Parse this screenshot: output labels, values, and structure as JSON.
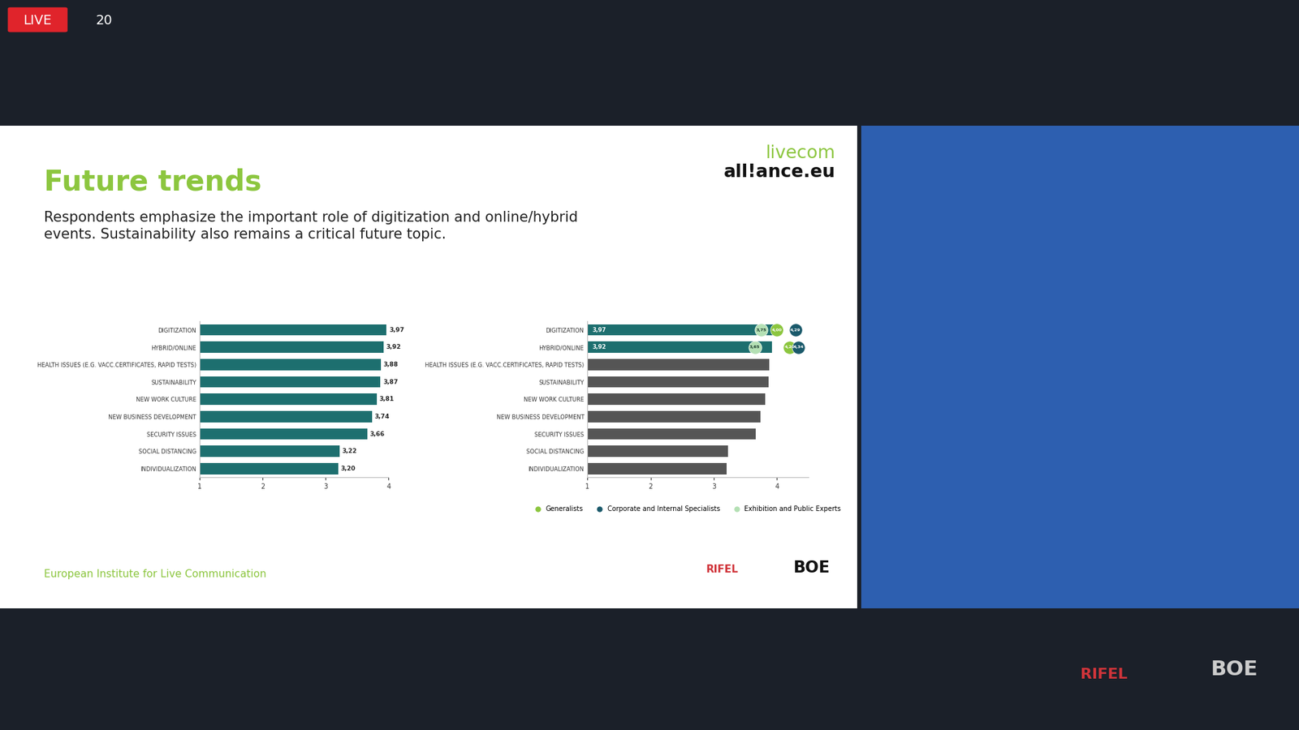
{
  "screen": {
    "live_badge": "LIVE",
    "viewers": "20",
    "footer_logos": [
      "RIFEL",
      "BOE"
    ]
  },
  "slide": {
    "title": "Future trends",
    "subtitle": "Respondents emphasize the important role of digitization and online/hybrid\nevents. Sustainability also remains a critical future topic.",
    "brand_top": "livecom",
    "brand_bottom": "all!ance.eu",
    "footer": "European Institute for Live Communication",
    "logos": [
      "RIFEL",
      "BOE"
    ]
  },
  "chart_data": [
    {
      "type": "bar",
      "orientation": "horizontal",
      "categories": [
        "DIGITIZATION",
        "HYBRID/ONLINE",
        "HEALTH ISSUES (E.G. VACC.CERTIFICATES, RAPID TESTS)",
        "SUSTAINABILITY",
        "NEW WORK CULTURE",
        "NEW BUSINESS DEVELOPMENT",
        "SECURITY ISSUES",
        "SOCIAL DISTANCING",
        "INDIVIDUALIZATION"
      ],
      "values": [
        3.97,
        3.92,
        3.88,
        3.87,
        3.81,
        3.74,
        3.66,
        3.22,
        3.2
      ],
      "value_labels": [
        "3,97",
        "3,92",
        "3,88",
        "3,87",
        "3,81",
        "3,74",
        "3,66",
        "3,22",
        "3,20"
      ],
      "color": "#1d6f6f",
      "xlim": [
        1,
        4
      ],
      "xticks": [
        1,
        2,
        3,
        4
      ],
      "grid": false,
      "data_labels": true
    },
    {
      "type": "bar",
      "orientation": "horizontal",
      "categories": [
        "DIGITIZATION",
        "HYBRID/ONLINE",
        "HEALTH ISSUES (E.G. VACC.CERTIFICATES, RAPID TESTS)",
        "SUSTAINABILITY",
        "NEW WORK CULTURE",
        "NEW BUSINESS DEVELOPMENT",
        "SECURITY ISSUES",
        "SOCIAL DISTANCING",
        "INDIVIDUALIZATION"
      ],
      "values": [
        3.97,
        3.92,
        3.88,
        3.87,
        3.81,
        3.74,
        3.66,
        3.22,
        3.2
      ],
      "value_labels": [
        "3,97",
        "3,92",
        null,
        null,
        null,
        null,
        null,
        null,
        null
      ],
      "colors": [
        "#1d6f6f",
        "#1d6f6f",
        "#555555",
        "#555555",
        "#555555",
        "#555555",
        "#555555",
        "#555555",
        "#555555"
      ],
      "xlim": [
        1,
        4.5
      ],
      "xticks": [
        1,
        2,
        3,
        4
      ],
      "grid": false,
      "data_labels": true,
      "legend": "lower right",
      "series": [
        {
          "name": "Generalists",
          "type": "scatter",
          "color": "#8cc63f",
          "marker": "o",
          "values": [
            4.0,
            4.2,
            null,
            null,
            null,
            null,
            null,
            null,
            null
          ],
          "value_labels": [
            "4,00",
            "4,20",
            null,
            null,
            null,
            null,
            null,
            null,
            null
          ]
        },
        {
          "name": "Corporate and Internal Specialists",
          "type": "scatter",
          "color": "#1b5a6b",
          "marker": "o",
          "values": [
            4.29,
            4.34,
            null,
            null,
            null,
            null,
            null,
            null,
            null
          ],
          "value_labels": [
            "4,29",
            "4,34",
            null,
            null,
            null,
            null,
            null,
            null,
            null
          ]
        },
        {
          "name": "Exhibition and Public Experts",
          "type": "scatter",
          "color": "#b4e0b4",
          "marker": "o",
          "values": [
            3.75,
            3.65,
            null,
            null,
            null,
            null,
            null,
            null,
            null
          ],
          "value_labels": [
            "3,75",
            "3,65",
            null,
            null,
            null,
            null,
            null,
            null,
            null
          ]
        }
      ]
    }
  ]
}
